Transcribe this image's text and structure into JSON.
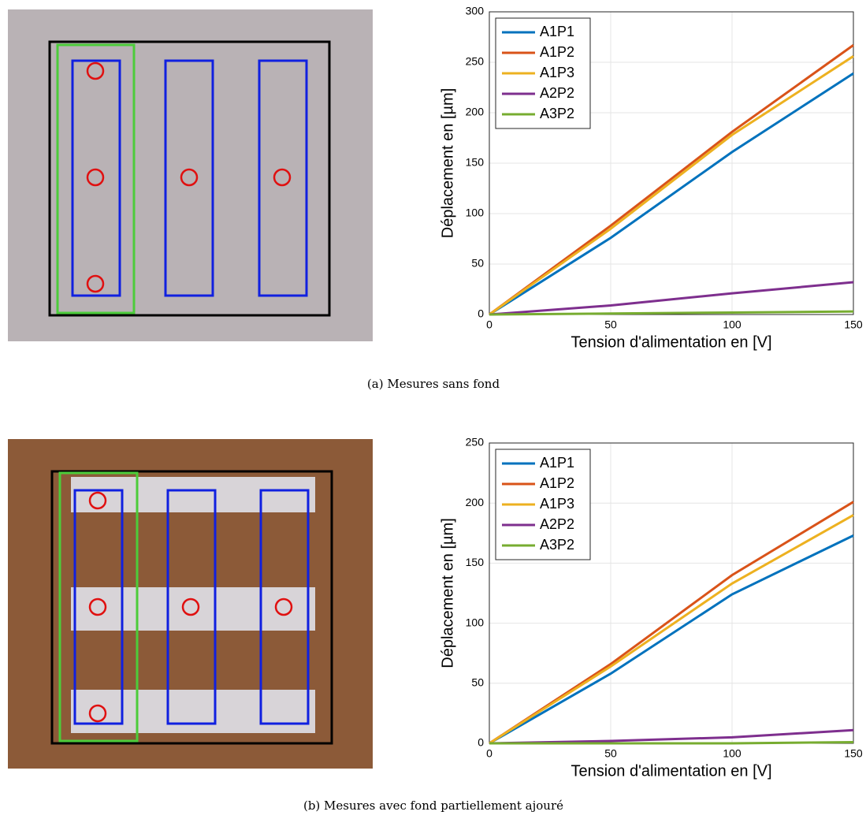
{
  "chart_data": [
    {
      "type": "line",
      "caption": "(a) Mesures sans fond",
      "xlabel": "Tension d'alimentation en [V]",
      "ylabel": "Déplacement en [µm]",
      "x": [
        0,
        50,
        100,
        150
      ],
      "series": [
        {
          "name": "A1P1",
          "color": "#0072bd",
          "values": [
            0,
            76,
            161,
            239
          ]
        },
        {
          "name": "A1P2",
          "color": "#d95319",
          "values": [
            0,
            88,
            181,
            267
          ]
        },
        {
          "name": "A1P3",
          "color": "#edb120",
          "values": [
            0,
            85,
            178,
            256
          ]
        },
        {
          "name": "A2P2",
          "color": "#7e2f8e",
          "values": [
            0,
            9,
            21,
            32
          ]
        },
        {
          "name": "A3P2",
          "color": "#77ac30",
          "values": [
            0,
            1,
            2,
            3
          ]
        }
      ],
      "xlim": [
        0,
        150
      ],
      "xticks": [
        0,
        50,
        100,
        150
      ],
      "ylim": [
        0,
        300
      ],
      "yticks": [
        0,
        50,
        100,
        150,
        200,
        250,
        300
      ],
      "grid": true,
      "legend": "upper-left"
    },
    {
      "type": "line",
      "caption": "(b) Mesures avec fond partiellement ajouré",
      "xlabel": "Tension d'alimentation en [V]",
      "ylabel": "Déplacement en [µm]",
      "x": [
        0,
        50,
        100,
        150
      ],
      "series": [
        {
          "name": "A1P1",
          "color": "#0072bd",
          "values": [
            0,
            58,
            124,
            173
          ]
        },
        {
          "name": "A1P2",
          "color": "#d95319",
          "values": [
            0,
            66,
            140,
            201
          ]
        },
        {
          "name": "A1P3",
          "color": "#edb120",
          "values": [
            0,
            64,
            133,
            190
          ]
        },
        {
          "name": "A2P2",
          "color": "#7e2f8e",
          "values": [
            0,
            2,
            5,
            11
          ]
        },
        {
          "name": "A3P2",
          "color": "#77ac30",
          "values": [
            0,
            0,
            0,
            1
          ]
        }
      ],
      "xlim": [
        0,
        150
      ],
      "xticks": [
        0,
        50,
        100,
        150
      ],
      "ylim": [
        0,
        250
      ],
      "yticks": [
        0,
        50,
        100,
        150,
        200,
        250
      ],
      "grid": true,
      "legend": "upper-left"
    }
  ]
}
